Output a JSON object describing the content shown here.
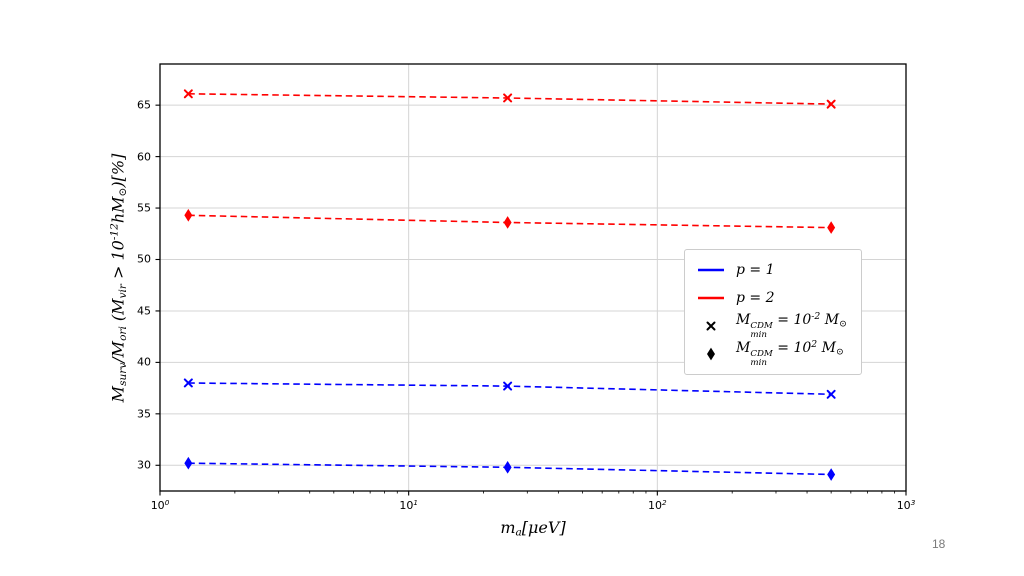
{
  "page": {
    "number": "18",
    "background": "#ffffff"
  },
  "chart_data": {
    "type": "line",
    "xscale": "log",
    "grid": true,
    "title": "",
    "xlabel": "m_{a}[μeV]",
    "ylabel": "M_{surv}/M_{ori} (M_{vir} > 10^{-12}hM_{⊙})[%]",
    "xlim": [
      1,
      1000
    ],
    "ylim": [
      27.5,
      69
    ],
    "xticks": [
      {
        "value": 1,
        "label": "10^{0}"
      },
      {
        "value": 10,
        "label": "10^{1}"
      },
      {
        "value": 100,
        "label": "10^{2}"
      },
      {
        "value": 1000,
        "label": "10^{3}"
      }
    ],
    "yticks": [
      30,
      35,
      40,
      45,
      50,
      55,
      60,
      65
    ],
    "series": [
      {
        "name": "p=2, Mmin=1e-2 Msun",
        "color": "#ff0000",
        "marker": "x",
        "linestyle": "dashed",
        "x": [
          1.3,
          25,
          500
        ],
        "y": [
          66.1,
          65.7,
          65.1
        ]
      },
      {
        "name": "p=2, Mmin=1e2 Msun",
        "color": "#ff0000",
        "marker": "diamond",
        "linestyle": "dashed",
        "x": [
          1.3,
          25,
          500
        ],
        "y": [
          54.3,
          53.6,
          53.1
        ]
      },
      {
        "name": "p=1, Mmin=1e-2 Msun",
        "color": "#0000ff",
        "marker": "x",
        "linestyle": "dashed",
        "x": [
          1.3,
          25,
          500
        ],
        "y": [
          38.0,
          37.7,
          36.9
        ]
      },
      {
        "name": "p=1, Mmin=1e2 Msun",
        "color": "#0000ff",
        "marker": "diamond",
        "linestyle": "dashed",
        "x": [
          1.3,
          25,
          500
        ],
        "y": [
          30.2,
          29.8,
          29.1
        ]
      }
    ],
    "legend": {
      "position": "center right",
      "entries": [
        {
          "swatch": "line",
          "color": "#0000ff",
          "label": "p = 1"
        },
        {
          "swatch": "line",
          "color": "#ff0000",
          "label": "p = 2"
        },
        {
          "swatch": "marker-x",
          "color": "#000000",
          "label": "M_{min}^{CDM} = 10^{-2} M_{⊙}"
        },
        {
          "swatch": "marker-diamond",
          "color": "#000000",
          "label": "M_{min}^{CDM} = 10^{2} M_{⊙}"
        }
      ]
    },
    "colors": {
      "grid": "#d4d4d4",
      "axis": "#000000"
    }
  }
}
